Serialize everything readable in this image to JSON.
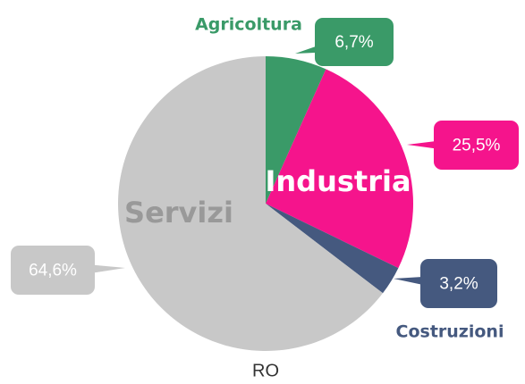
{
  "chart_data": {
    "type": "pie",
    "title": "RO",
    "categories": [
      "Agricoltura",
      "Industria",
      "Costruzioni",
      "Servizi"
    ],
    "values": [
      6.7,
      25.5,
      3.2,
      64.6
    ],
    "value_labels": [
      "6,7%",
      "25,5%",
      "3,2%",
      "64,6%"
    ],
    "colors": [
      "#3a9a68",
      "#f5148c",
      "#45597f",
      "#c8c8c8"
    ]
  }
}
